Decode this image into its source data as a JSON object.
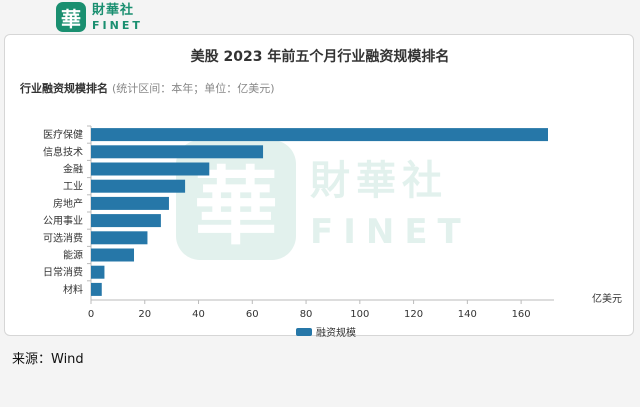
{
  "brand": {
    "mark": "華",
    "name_cn": "財華社",
    "name_en": "FINET"
  },
  "chart_data": {
    "type": "bar",
    "orientation": "horizontal",
    "title": "美股 2023 年前五个月行业融资规模排名",
    "subtitle": "行业融资规模排名",
    "subtitle_note": "(统计区间：本年；单位：亿美元)",
    "categories": [
      "医疗保健",
      "信息技术",
      "金融",
      "工业",
      "房地产",
      "公用事业",
      "可选消费",
      "能源",
      "日常消费",
      "材料"
    ],
    "series": [
      {
        "name": "融资规模",
        "values": [
          170,
          64,
          44,
          35,
          29,
          26,
          21,
          16,
          5,
          4
        ]
      }
    ],
    "xlabel": "亿美元",
    "xlim": [
      0,
      170
    ],
    "xticks": [
      0,
      20,
      40,
      60,
      80,
      100,
      120,
      140,
      160
    ],
    "legend": "bottom-center",
    "bar_color": "#2677a8",
    "grid": false
  },
  "source_text": "来源：Wind"
}
